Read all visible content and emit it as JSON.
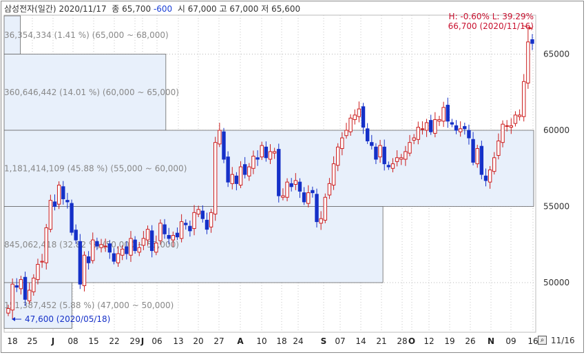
{
  "header": {
    "name": "삼성전자(일간)",
    "date": "2020/11/17",
    "close_label": "종",
    "close": "65,700",
    "change": "-600",
    "open_label": "시",
    "open": "67,000",
    "high_label": "고",
    "high": "67,000",
    "low_label": "저",
    "low": "65,600"
  },
  "info": {
    "hl": "H: -0.60%   L: 39.29%",
    "max_label": "66,700 (2020/11/16)",
    "min_label": "47,600 (2020/05/18)"
  },
  "bottom_date": "11/16",
  "colors": {
    "up": "#cc1b1b",
    "down": "#1530c8",
    "box_fill": "#e8f0fb",
    "box_stroke": "#666666"
  },
  "chart_data": {
    "type": "candlestick",
    "ylim": [
      47600,
      67000
    ],
    "y_ticks": [
      {
        "value": 50000,
        "label": "50000"
      },
      {
        "value": 55000,
        "label": "55000"
      },
      {
        "value": 60000,
        "label": "60000"
      },
      {
        "value": 65000,
        "label": "65000"
      }
    ],
    "x_ticks": [
      "18",
      "25",
      "J",
      "08",
      "15",
      "22",
      "29",
      "J",
      "06",
      "13",
      "20",
      "27",
      "A",
      "10",
      "18",
      "24",
      "S",
      "07",
      "14",
      "21",
      "28",
      "O",
      "12",
      "19",
      "26",
      "N",
      "09",
      "16"
    ],
    "volume_profile": [
      {
        "range": [
          65000,
          68000
        ],
        "label": "36,354,334 (1.41 %) (65,000 ~ 68,000)",
        "share": 1.41
      },
      {
        "range": [
          60000,
          65000
        ],
        "label": "360,646,442 (14.01 %) (60,000 ~ 65,000)",
        "share": 14.01
      },
      {
        "range": [
          55000,
          60000
        ],
        "label": "1,181,414,109 (45.88 %) (55,000 ~ 60,000)",
        "share": 45.88
      },
      {
        "range": [
          50000,
          55000
        ],
        "label": "845,062,418 (32.82 %) (50,000 ~ 55,000)",
        "share": 32.82
      },
      {
        "range": [
          47000,
          50000
        ],
        "label": "151,387,452 (5.88 %) (47,000 ~ 50,000)",
        "share": 5.88
      }
    ],
    "closes": [
      48300,
      49900,
      49700,
      50200,
      48900,
      49500,
      50300,
      51200,
      51400,
      53600,
      55400,
      55000,
      56400,
      55500,
      55300,
      53300,
      52800,
      49900,
      51800,
      51300,
      52800,
      52400,
      52500,
      52400,
      52000,
      51400,
      51900,
      52200,
      51900,
      52900,
      52100,
      52300,
      52900,
      53500,
      52100,
      52600,
      53900,
      53200,
      52900,
      53100,
      53000,
      54000,
      53800,
      53400,
      54600,
      54800,
      54200,
      53500,
      54600,
      59200,
      60000,
      58100,
      56600,
      57100,
      56500,
      57600,
      57100,
      57600,
      58300,
      58100,
      59000,
      58200,
      58600,
      58600,
      55700,
      55700,
      56600,
      56300,
      56700,
      56000,
      55300,
      55900,
      55900,
      54000,
      54200,
      55600,
      56500,
      57800,
      58900,
      59500,
      60000,
      60800,
      61000,
      61400,
      60200,
      59300,
      59000,
      58100,
      59000,
      57800,
      57600,
      57800,
      58200,
      58200,
      58600,
      59200,
      59500,
      60200,
      60100,
      60500,
      59900,
      60700,
      60700,
      61500,
      60600,
      60400,
      60000,
      60100,
      60100,
      59500,
      57900,
      58800,
      57100,
      56700,
      57400,
      58200,
      59300,
      60400,
      60300,
      60300,
      61000,
      61000,
      63200,
      65800,
      65700
    ],
    "ohlc_min": 47600,
    "ohlc_max": 66700
  }
}
